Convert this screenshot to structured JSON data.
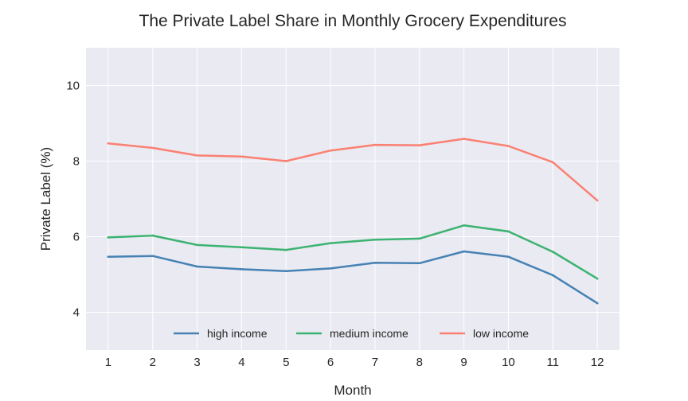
{
  "chart_data": {
    "type": "line",
    "title": "The Private Label Share in Monthly Grocery Expenditures",
    "xlabel": "Month",
    "ylabel": "Private Label (%)",
    "x": [
      1,
      2,
      3,
      4,
      5,
      6,
      7,
      8,
      9,
      10,
      11,
      12
    ],
    "xlim": [
      0.5,
      12.5
    ],
    "ylim": [
      3.0,
      11.0
    ],
    "yticks": [
      4,
      6,
      8,
      10
    ],
    "grid": true,
    "legend_position": "bottom-center",
    "series": [
      {
        "name": "high income",
        "color": "#4682b4",
        "values": [
          5.47,
          5.49,
          5.21,
          5.14,
          5.09,
          5.16,
          5.31,
          5.3,
          5.61,
          5.47,
          4.98,
          4.24
        ]
      },
      {
        "name": "medium income",
        "color": "#3cb371",
        "values": [
          5.98,
          6.03,
          5.78,
          5.72,
          5.65,
          5.83,
          5.92,
          5.95,
          6.3,
          6.14,
          5.6,
          4.89
        ]
      },
      {
        "name": "low income",
        "color": "#fa8072",
        "values": [
          8.47,
          8.35,
          8.15,
          8.12,
          8.0,
          8.28,
          8.43,
          8.42,
          8.59,
          8.4,
          7.97,
          6.96
        ]
      }
    ]
  }
}
